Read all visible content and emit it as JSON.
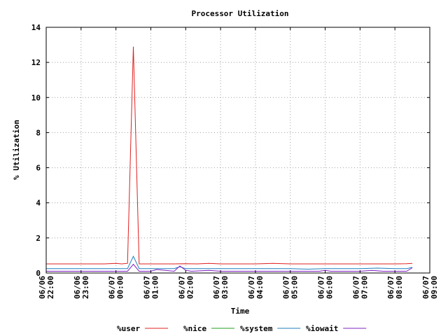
{
  "chart_data": {
    "type": "line",
    "title": "Processor Utilization",
    "xlabel": "Time",
    "ylabel": "% Utilization",
    "ylim": [
      0,
      14
    ],
    "yticks": [
      0,
      2,
      4,
      6,
      8,
      10,
      12,
      14
    ],
    "xlim": [
      "06/06 22:00",
      "06/07 09:00"
    ],
    "xtick_labels": [
      {
        "date": "06/06",
        "time": "22:00"
      },
      {
        "date": "06/06",
        "time": "23:00"
      },
      {
        "date": "06/07",
        "time": "00:00"
      },
      {
        "date": "06/07",
        "time": "01:00"
      },
      {
        "date": "06/07",
        "time": "02:00"
      },
      {
        "date": "06/07",
        "time": "03:00"
      },
      {
        "date": "06/07",
        "time": "04:00"
      },
      {
        "date": "06/07",
        "time": "05:00"
      },
      {
        "date": "06/07",
        "time": "06:00"
      },
      {
        "date": "06/07",
        "time": "07:00"
      },
      {
        "date": "06/07",
        "time": "08:00"
      },
      {
        "date": "06/07",
        "time": "09:00"
      }
    ],
    "grid": true,
    "legend_position": "bottom",
    "series": [
      {
        "name": "%user",
        "color": "#e02020",
        "x": [
          "06/06 22:00",
          "06/06 22:40",
          "06/06 23:00",
          "06/06 23:40",
          "06/07 00:00",
          "06/07 00:10",
          "06/07 00:20",
          "06/07 00:30",
          "06/07 00:40",
          "06/07 00:50",
          "06/07 01:10",
          "06/07 01:40",
          "06/07 02:00",
          "06/07 02:20",
          "06/07 02:40",
          "06/07 03:00",
          "06/07 03:40",
          "06/07 04:00",
          "06/07 04:30",
          "06/07 05:00",
          "06/07 05:40",
          "06/07 06:00",
          "06/07 06:40",
          "06/07 07:00",
          "06/07 07:40",
          "06/07 08:00",
          "06/07 08:20",
          "06/07 08:30"
        ],
        "y": [
          0.52,
          0.52,
          0.52,
          0.52,
          0.55,
          0.52,
          0.55,
          12.9,
          0.52,
          0.52,
          0.52,
          0.52,
          0.53,
          0.52,
          0.55,
          0.52,
          0.52,
          0.52,
          0.55,
          0.52,
          0.52,
          0.52,
          0.52,
          0.52,
          0.52,
          0.52,
          0.53,
          0.55
        ]
      },
      {
        "name": "%nice",
        "color": "#20a020",
        "x": [
          "06/06 22:00",
          "06/07 08:30"
        ],
        "y": [
          0.0,
          0.0
        ]
      },
      {
        "name": "%system",
        "color": "#2080c0",
        "x": [
          "06/06 22:00",
          "06/06 23:00",
          "06/07 00:00",
          "06/07 00:20",
          "06/07 00:30",
          "06/07 00:40",
          "06/07 01:00",
          "06/07 01:40",
          "06/07 01:50",
          "06/07 02:00",
          "06/07 03:00",
          "06/07 04:00",
          "06/07 05:00",
          "06/07 05:30",
          "06/07 06:00",
          "06/07 06:40",
          "06/07 07:00",
          "06/07 07:30",
          "06/07 08:00",
          "06/07 08:20",
          "06/07 08:30"
        ],
        "y": [
          0.25,
          0.25,
          0.25,
          0.25,
          0.95,
          0.25,
          0.25,
          0.25,
          0.35,
          0.25,
          0.25,
          0.25,
          0.25,
          0.22,
          0.25,
          0.25,
          0.25,
          0.28,
          0.25,
          0.25,
          0.32
        ]
      },
      {
        "name": "%iowait",
        "color": "#8020c0",
        "x": [
          "06/06 22:00",
          "06/06 23:00",
          "06/07 00:00",
          "06/07 00:20",
          "06/07 00:30",
          "06/07 00:40",
          "06/07 01:00",
          "06/07 01:10",
          "06/07 01:40",
          "06/07 01:50",
          "06/07 02:00",
          "06/07 02:10",
          "06/07 02:40",
          "06/07 03:00",
          "06/07 04:00",
          "06/07 05:00",
          "06/07 05:50",
          "06/07 06:00",
          "06/07 06:10",
          "06/07 07:00",
          "06/07 07:20",
          "06/07 07:40",
          "06/07 08:00",
          "06/07 08:20",
          "06/07 08:30"
        ],
        "y": [
          0.1,
          0.1,
          0.1,
          0.1,
          0.5,
          0.1,
          0.1,
          0.2,
          0.1,
          0.4,
          0.15,
          0.1,
          0.15,
          0.1,
          0.1,
          0.1,
          0.1,
          0.15,
          0.1,
          0.1,
          0.15,
          0.1,
          0.1,
          0.1,
          0.3
        ]
      }
    ]
  }
}
